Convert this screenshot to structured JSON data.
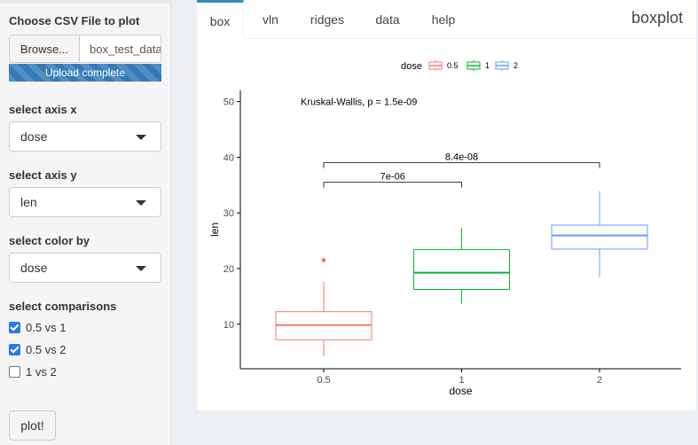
{
  "sidebar": {
    "file_label": "Choose CSV File to plot",
    "browse_label": "Browse...",
    "file_name": "box_test_data.csv",
    "upload_status": "Upload complete",
    "upload_progress": 100,
    "axis_x_label": "select axis x",
    "axis_x_value": "dose",
    "axis_y_label": "select axis y",
    "axis_y_value": "len",
    "color_label": "select color by",
    "color_value": "dose",
    "comparisons_label": "select comparisons",
    "comparisons": [
      {
        "label": "0.5 vs 1",
        "checked": true
      },
      {
        "label": "0.5 vs 2",
        "checked": true
      },
      {
        "label": "1 vs 2",
        "checked": false
      }
    ],
    "plot_button": "plot!"
  },
  "tabs": [
    {
      "label": "box",
      "active": true
    },
    {
      "label": "vln",
      "active": false
    },
    {
      "label": "ridges",
      "active": false
    },
    {
      "label": "data",
      "active": false
    },
    {
      "label": "help",
      "active": false
    }
  ],
  "box_title": "boxplot",
  "chart_data": {
    "type": "boxplot",
    "xlabel": "dose",
    "ylabel": "len",
    "ylim": [
      2,
      52
    ],
    "yticks": [
      10,
      20,
      30,
      40,
      50
    ],
    "categories": [
      "0.5",
      "1",
      "2"
    ],
    "legend": {
      "title": "dose",
      "position": "top",
      "entries": [
        "0.5",
        "1",
        "2"
      ]
    },
    "colors": [
      "#f8766d",
      "#00ba38",
      "#619cff"
    ],
    "boxes": [
      {
        "category": "0.5",
        "min": 4.2,
        "q1": 7.2,
        "median": 9.85,
        "q3": 12.25,
        "max": 17.6,
        "outliers": [
          21.5
        ]
      },
      {
        "category": "1",
        "min": 13.6,
        "q1": 16.25,
        "median": 19.25,
        "q3": 23.4,
        "max": 27.3,
        "outliers": []
      },
      {
        "category": "2",
        "min": 18.5,
        "q1": 23.5,
        "median": 25.95,
        "q3": 27.8,
        "max": 33.9,
        "outliers": []
      }
    ],
    "annotation": "Kruskal-Wallis, p = 1.5e-09",
    "comparisons": [
      {
        "groups": [
          "0.5",
          "1"
        ],
        "label": "7e-06",
        "y": 35.5
      },
      {
        "groups": [
          "0.5",
          "2"
        ],
        "label": "8.4e-08",
        "y": 39
      }
    ]
  }
}
